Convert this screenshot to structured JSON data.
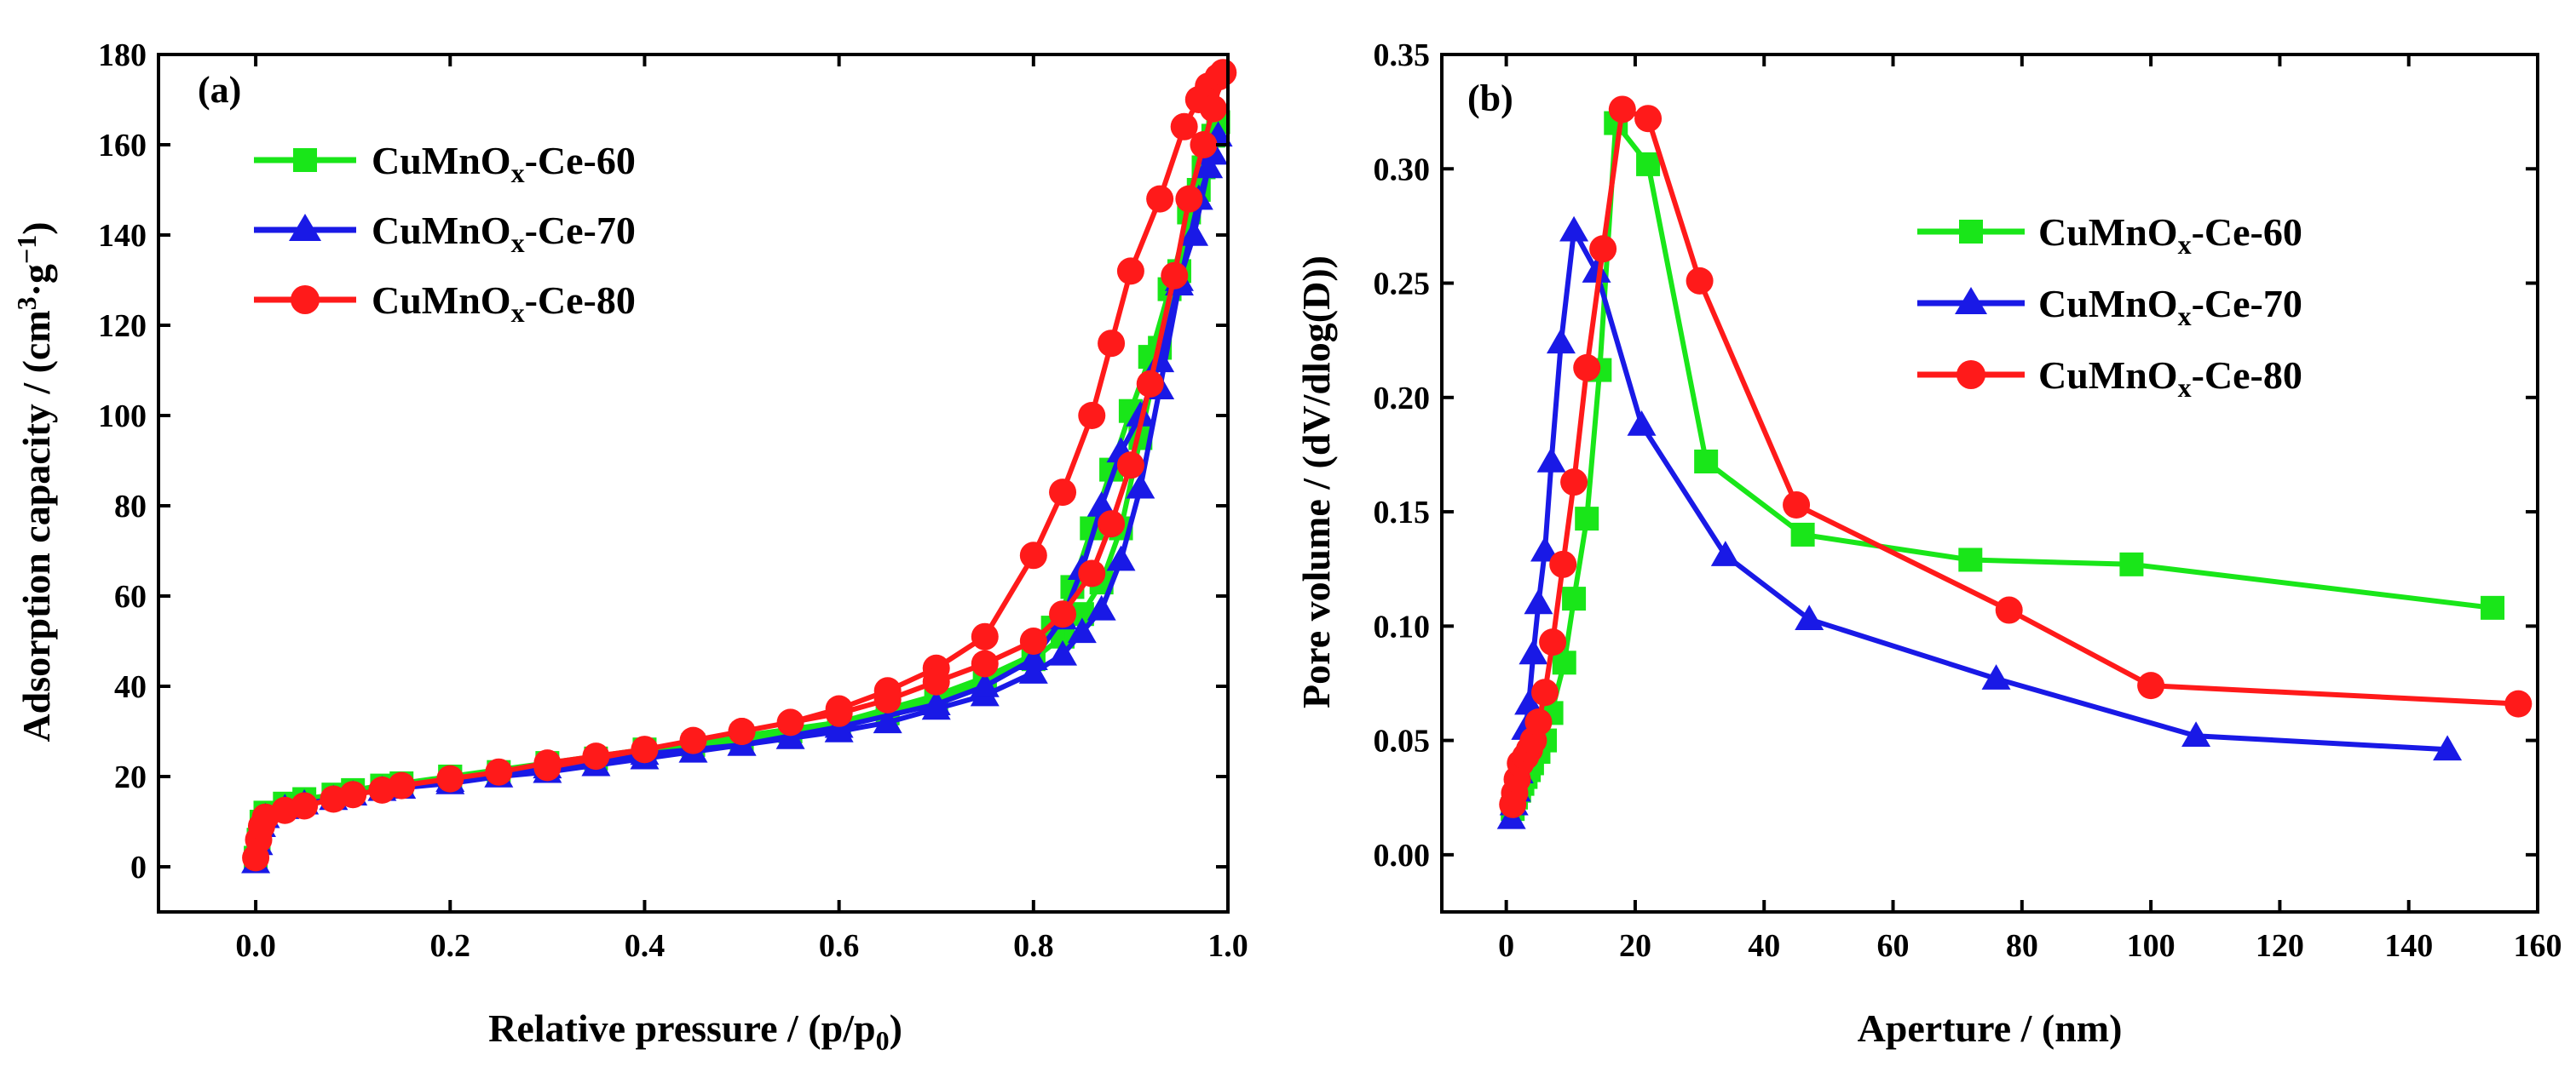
{
  "chart_data": [
    {
      "type": "line",
      "panel_label": "(a)",
      "xlabel_main": "Relative pressure / (p/p",
      "xlabel_sub": "0",
      "xlabel_tail": ")",
      "ylabel_main": "Adsorption capacity / (cm",
      "ylabel_sup1": "3",
      "ylabel_mid": "·g",
      "ylabel_sup2": "−1",
      "ylabel_tail": ")",
      "xlim": [
        -0.1,
        1.0
      ],
      "ylim": [
        -10,
        180
      ],
      "xticks": [
        "0.0",
        "0.2",
        "0.4",
        "0.6",
        "0.8",
        "1.0"
      ],
      "xtick_values": [
        0.0,
        0.2,
        0.4,
        0.6,
        0.8,
        1.0
      ],
      "yticks": [
        "0",
        "20",
        "40",
        "60",
        "80",
        "100",
        "120",
        "140",
        "160",
        "180"
      ],
      "ytick_values": [
        0,
        20,
        40,
        60,
        80,
        100,
        120,
        140,
        160,
        180
      ],
      "legend_position": "top-left",
      "series": [
        {
          "name_main": "CuMnO",
          "name_sub": "x",
          "name_tail": "-Ce-60",
          "color": "#19e619",
          "marker": "square",
          "points": [
            [
              0.0,
              2
            ],
            [
              0.003,
              6
            ],
            [
              0.006,
              10
            ],
            [
              0.01,
              12
            ],
            [
              0.03,
              14
            ],
            [
              0.05,
              15
            ],
            [
              0.08,
              16
            ],
            [
              0.1,
              17
            ],
            [
              0.13,
              18
            ],
            [
              0.15,
              18.5
            ],
            [
              0.2,
              20
            ],
            [
              0.25,
              21
            ],
            [
              0.3,
              22
            ],
            [
              0.35,
              24
            ],
            [
              0.4,
              25
            ],
            [
              0.45,
              27
            ],
            [
              0.5,
              28
            ],
            [
              0.55,
              30
            ],
            [
              0.6,
              32
            ],
            [
              0.65,
              34
            ],
            [
              0.7,
              37
            ],
            [
              0.75,
              41
            ],
            [
              0.8,
              46
            ],
            [
              0.83,
              51
            ],
            [
              0.85,
              56
            ],
            [
              0.87,
              63
            ],
            [
              0.89,
              75
            ],
            [
              0.91,
              95
            ],
            [
              0.93,
              115
            ],
            [
              0.95,
              132
            ],
            [
              0.97,
              150
            ],
            [
              0.985,
              162
            ],
            [
              0.99,
              165
            ],
            [
              0.975,
              155
            ],
            [
              0.96,
              145
            ],
            [
              0.94,
              128
            ],
            [
              0.92,
              113
            ],
            [
              0.9,
              101
            ],
            [
              0.88,
              88
            ],
            [
              0.86,
              75
            ],
            [
              0.84,
              62
            ],
            [
              0.82,
              53
            ],
            [
              0.8,
              47
            ],
            [
              0.75,
              42
            ],
            [
              0.7,
              38
            ],
            [
              0.65,
              35
            ],
            [
              0.6,
              32
            ],
            [
              0.5,
              29
            ],
            [
              0.4,
              26
            ],
            [
              0.3,
              23
            ],
            [
              0.2,
              20
            ]
          ]
        },
        {
          "name_main": "CuMnO",
          "name_sub": "x",
          "name_tail": "-Ce-70",
          "color": "#1919e6",
          "marker": "triangle",
          "points": [
            [
              0.0,
              1
            ],
            [
              0.003,
              5
            ],
            [
              0.006,
              9
            ],
            [
              0.01,
              11
            ],
            [
              0.03,
              13
            ],
            [
              0.05,
              14
            ],
            [
              0.08,
              15
            ],
            [
              0.1,
              16
            ],
            [
              0.13,
              17
            ],
            [
              0.15,
              17.5
            ],
            [
              0.2,
              18.5
            ],
            [
              0.25,
              20
            ],
            [
              0.3,
              21
            ],
            [
              0.35,
              22.5
            ],
            [
              0.4,
              24
            ],
            [
              0.45,
              25.5
            ],
            [
              0.5,
              27
            ],
            [
              0.55,
              28.5
            ],
            [
              0.6,
              30
            ],
            [
              0.65,
              32
            ],
            [
              0.7,
              35
            ],
            [
              0.75,
              38
            ],
            [
              0.8,
              43
            ],
            [
              0.83,
              47
            ],
            [
              0.85,
              52
            ],
            [
              0.87,
              57
            ],
            [
              0.89,
              68
            ],
            [
              0.91,
              84
            ],
            [
              0.93,
              106
            ],
            [
              0.95,
              129
            ],
            [
              0.97,
              148
            ],
            [
              0.985,
              158
            ],
            [
              0.99,
              162
            ],
            [
              0.98,
              155
            ],
            [
              0.965,
              140
            ],
            [
              0.95,
              130
            ],
            [
              0.93,
              112
            ],
            [
              0.91,
              100
            ],
            [
              0.89,
              92
            ],
            [
              0.87,
              80
            ],
            [
              0.85,
              66
            ],
            [
              0.83,
              55
            ],
            [
              0.8,
              46
            ],
            [
              0.75,
              40
            ],
            [
              0.7,
              36
            ],
            [
              0.6,
              31
            ],
            [
              0.5,
              27
            ],
            [
              0.4,
              25
            ],
            [
              0.3,
              22
            ],
            [
              0.2,
              19
            ]
          ]
        },
        {
          "name_main": "CuMnO",
          "name_sub": "x",
          "name_tail": "-Ce-80",
          "color": "#ff1a1a",
          "marker": "circle",
          "points": [
            [
              0.0,
              2
            ],
            [
              0.003,
              6
            ],
            [
              0.006,
              9
            ],
            [
              0.01,
              11
            ],
            [
              0.03,
              12.5
            ],
            [
              0.05,
              13.5
            ],
            [
              0.08,
              15
            ],
            [
              0.1,
              16
            ],
            [
              0.13,
              17
            ],
            [
              0.15,
              18
            ],
            [
              0.2,
              19.5
            ],
            [
              0.25,
              21
            ],
            [
              0.3,
              23
            ],
            [
              0.35,
              24.5
            ],
            [
              0.4,
              26
            ],
            [
              0.45,
              28
            ],
            [
              0.5,
              30
            ],
            [
              0.55,
              32
            ],
            [
              0.6,
              35
            ],
            [
              0.65,
              39
            ],
            [
              0.7,
              44
            ],
            [
              0.75,
              51
            ],
            [
              0.8,
              69
            ],
            [
              0.83,
              83
            ],
            [
              0.86,
              100
            ],
            [
              0.88,
              116
            ],
            [
              0.9,
              132
            ],
            [
              0.93,
              148
            ],
            [
              0.955,
              164
            ],
            [
              0.97,
              170
            ],
            [
              0.98,
              173
            ],
            [
              0.99,
              175
            ],
            [
              0.995,
              176
            ],
            [
              0.985,
              168
            ],
            [
              0.975,
              160
            ],
            [
              0.96,
              148
            ],
            [
              0.945,
              131
            ],
            [
              0.92,
              107
            ],
            [
              0.9,
              89
            ],
            [
              0.88,
              76
            ],
            [
              0.86,
              65
            ],
            [
              0.83,
              56
            ],
            [
              0.8,
              50
            ],
            [
              0.75,
              45
            ],
            [
              0.7,
              41
            ],
            [
              0.65,
              37
            ],
            [
              0.6,
              34
            ],
            [
              0.5,
              30
            ],
            [
              0.4,
              26
            ],
            [
              0.3,
              22
            ]
          ]
        }
      ]
    },
    {
      "type": "line",
      "panel_label": "(b)",
      "xlabel": "Aperture / (nm)",
      "ylabel": "Pore volume / (dV/dlog(D))",
      "xlim": [
        -10,
        160
      ],
      "ylim": [
        -0.025,
        0.35
      ],
      "xticks": [
        "0",
        "20",
        "40",
        "60",
        "80",
        "100",
        "120",
        "140",
        "160"
      ],
      "xtick_values": [
        0,
        20,
        40,
        60,
        80,
        100,
        120,
        140,
        160
      ],
      "yticks": [
        "0.00",
        "0.05",
        "0.10",
        "0.15",
        "0.20",
        "0.25",
        "0.30",
        "0.35"
      ],
      "ytick_values": [
        0.0,
        0.05,
        0.1,
        0.15,
        0.2,
        0.25,
        0.3,
        0.35
      ],
      "legend_position": "top-right",
      "series": [
        {
          "name_main": "CuMnO",
          "name_sub": "x",
          "name_tail": "-Ce-60",
          "color": "#19e619",
          "marker": "square",
          "points": [
            [
              1.0,
              0.02
            ],
            [
              1.5,
              0.025
            ],
            [
              2.0,
              0.028
            ],
            [
              2.5,
              0.031
            ],
            [
              3.0,
              0.034
            ],
            [
              3.5,
              0.037
            ],
            [
              4.0,
              0.04
            ],
            [
              5.0,
              0.045
            ],
            [
              6.0,
              0.05
            ],
            [
              7.0,
              0.062
            ],
            [
              9.0,
              0.084
            ],
            [
              10.5,
              0.112
            ],
            [
              12.5,
              0.147
            ],
            [
              14.5,
              0.212
            ],
            [
              17.0,
              0.32
            ],
            [
              22.0,
              0.302
            ],
            [
              31.0,
              0.172
            ],
            [
              46.0,
              0.14
            ],
            [
              72.0,
              0.129
            ],
            [
              97.0,
              0.127
            ],
            [
              153.0,
              0.108
            ]
          ]
        },
        {
          "name_main": "CuMnO",
          "name_sub": "x",
          "name_tail": "-Ce-70",
          "color": "#1919e6",
          "marker": "triangle",
          "points": [
            [
              0.8,
              0.016
            ],
            [
              1.2,
              0.022
            ],
            [
              1.6,
              0.028
            ],
            [
              2.0,
              0.036
            ],
            [
              2.5,
              0.045
            ],
            [
              3.0,
              0.055
            ],
            [
              3.5,
              0.066
            ],
            [
              4.2,
              0.088
            ],
            [
              5.0,
              0.11
            ],
            [
              6.0,
              0.133
            ],
            [
              7.0,
              0.172
            ],
            [
              8.5,
              0.224
            ],
            [
              10.5,
              0.273
            ],
            [
              14.0,
              0.255
            ],
            [
              21.0,
              0.188
            ],
            [
              34.0,
              0.131
            ],
            [
              47.0,
              0.103
            ],
            [
              76.0,
              0.077
            ],
            [
              107.0,
              0.052
            ],
            [
              146.0,
              0.046
            ]
          ]
        },
        {
          "name_main": "CuMnO",
          "name_sub": "x",
          "name_tail": "-Ce-80",
          "color": "#ff1a1a",
          "marker": "circle",
          "points": [
            [
              1.0,
              0.022
            ],
            [
              1.3,
              0.027
            ],
            [
              1.7,
              0.033
            ],
            [
              2.2,
              0.04
            ],
            [
              3.0,
              0.043
            ],
            [
              3.6,
              0.046
            ],
            [
              4.2,
              0.05
            ],
            [
              5.0,
              0.058
            ],
            [
              6.0,
              0.071
            ],
            [
              7.2,
              0.093
            ],
            [
              8.8,
              0.127
            ],
            [
              10.5,
              0.163
            ],
            [
              12.5,
              0.213
            ],
            [
              15.0,
              0.265
            ],
            [
              18.0,
              0.326
            ],
            [
              22.0,
              0.322
            ],
            [
              30.0,
              0.251
            ],
            [
              45.0,
              0.153
            ],
            [
              78.0,
              0.107
            ],
            [
              100.0,
              0.074
            ],
            [
              157.0,
              0.066
            ]
          ]
        }
      ]
    }
  ]
}
